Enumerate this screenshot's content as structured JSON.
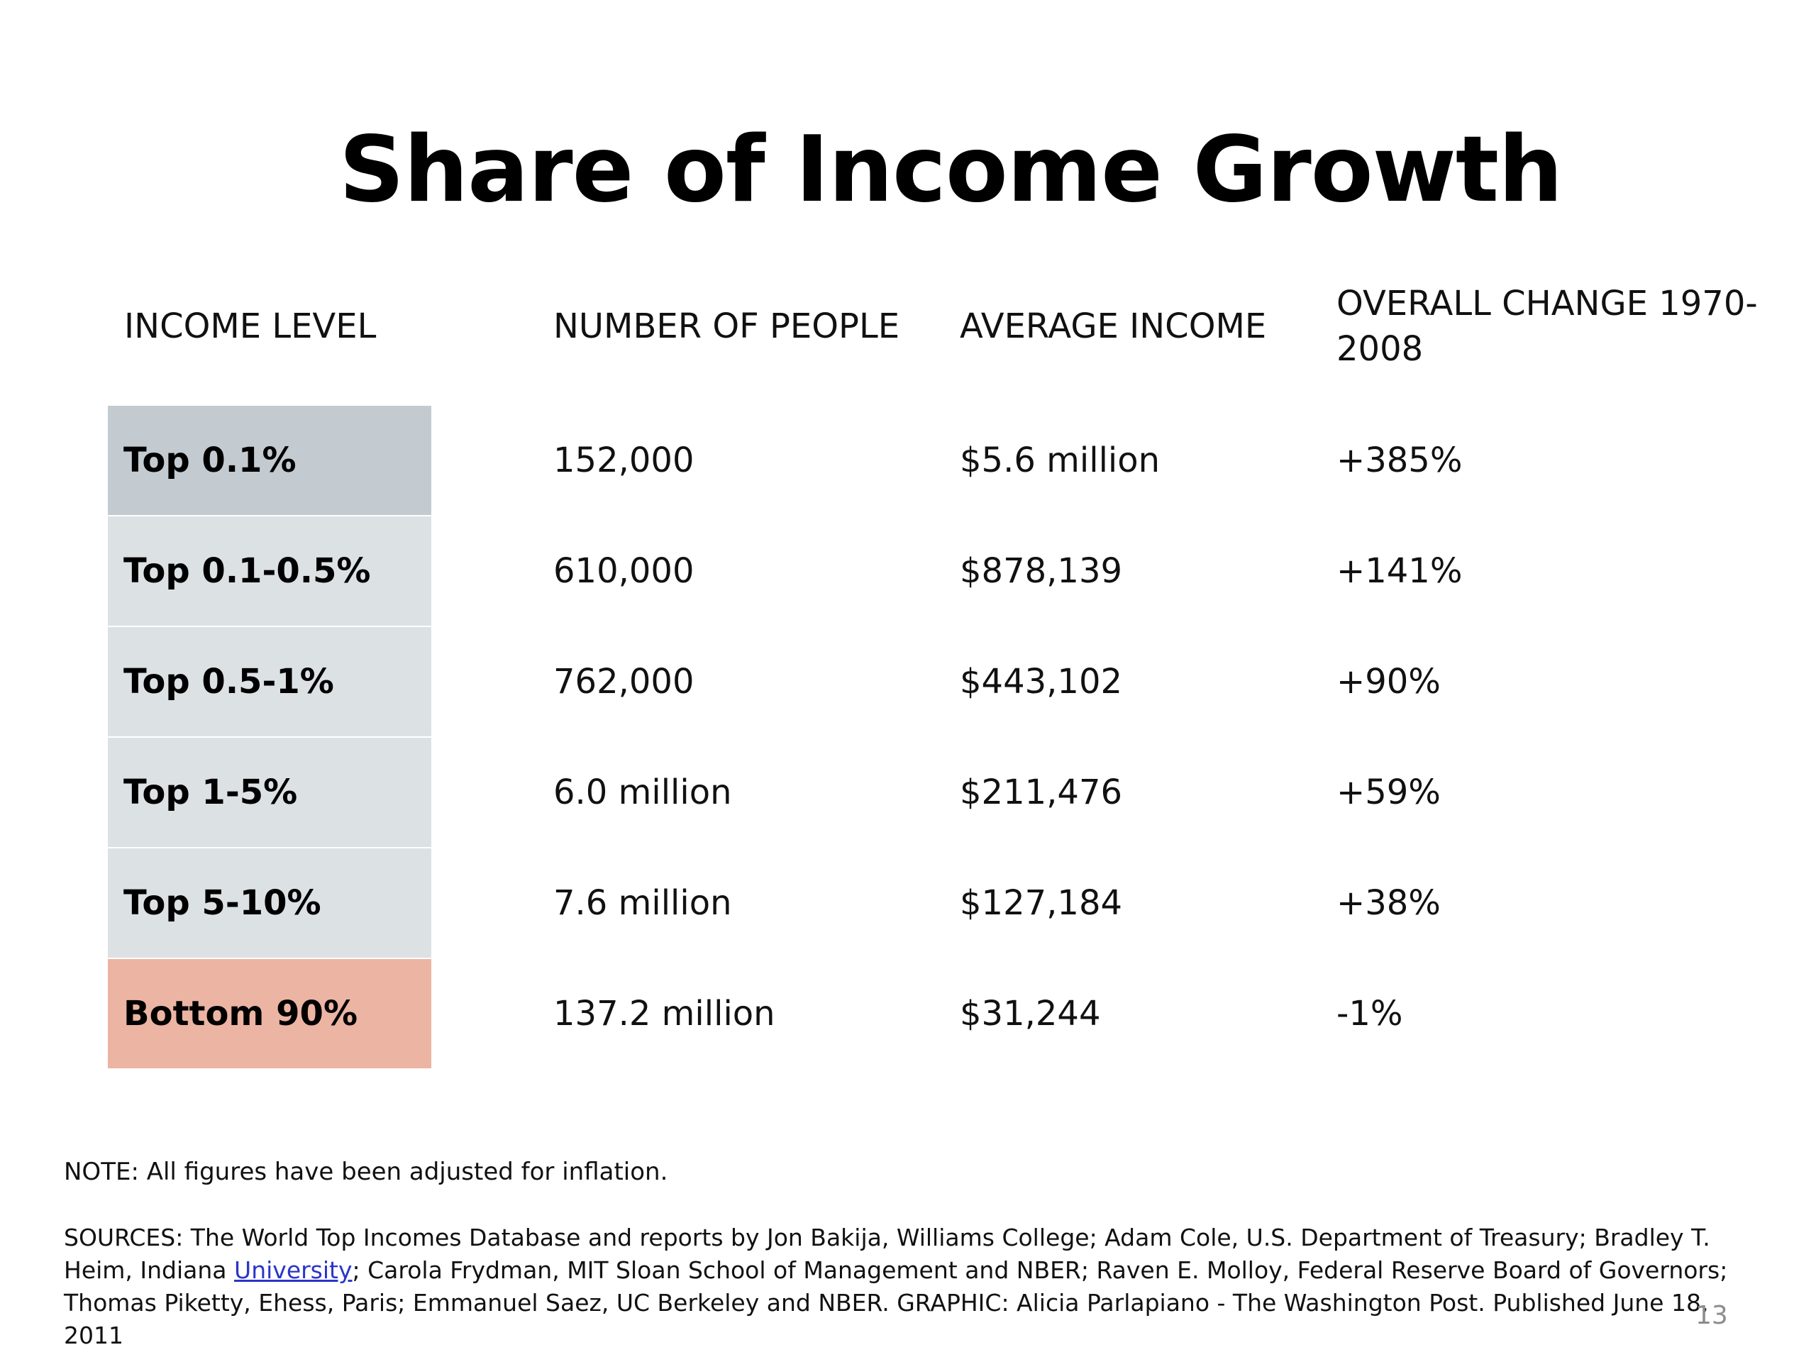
{
  "title": "Share of Income Growth",
  "table": {
    "headers": {
      "income_level": "INCOME LEVEL",
      "number_of_people": "NUMBER OF PEOPLE",
      "average_income": "AVERAGE INCOME",
      "overall_change_line1": "OVERALL CHANGE 1970-",
      "overall_change_line2": "2008"
    },
    "rows": [
      {
        "level": "Top 0.1%",
        "people": "152,000",
        "income": "$5.6 million",
        "change": "+385%",
        "fill": "#c3cbd1"
      },
      {
        "level": "Top 0.1-0.5%",
        "people": "610,000",
        "income": "$878,139",
        "change": "+141%",
        "fill": "#dce1e4"
      },
      {
        "level": "Top 0.5-1%",
        "people": "762,000",
        "income": "$443,102",
        "change": "+90%",
        "fill": "#dce1e4"
      },
      {
        "level": "Top 1-5%",
        "people": "6.0 million",
        "income": "$211,476",
        "change": "+59%",
        "fill": "#dce1e4"
      },
      {
        "level": "Top 5-10%",
        "people": "7.6 million",
        "income": "$127,184",
        "change": "+38%",
        "fill": "#dce1e4"
      },
      {
        "level": "Bottom 90%",
        "people": "137.2 million",
        "income": "$31,244",
        "change": "-1%",
        "fill": "#ecb4a3"
      }
    ]
  },
  "note": "NOTE: All figures have been adjusted for inflation.",
  "sources": {
    "prefix": "SOURCES: The World Top Incomes Database and reports by Jon Bakija, Williams College; Adam Cole, U.S. Department of Treasury; Bradley T. Heim, Indiana",
    "link_text": "University",
    "suffix": "; Carola Frydman, MIT Sloan School of Management and NBER; Raven E. Molloy, Federal Reserve Board of Governors; Thomas Piketty, Ehess, Paris; Emmanuel Saez, UC Berkeley and NBER. GRAPHIC: Alicia Parlapiano - The Washington Post. Published June 18, 2011"
  },
  "page_number": "13"
}
